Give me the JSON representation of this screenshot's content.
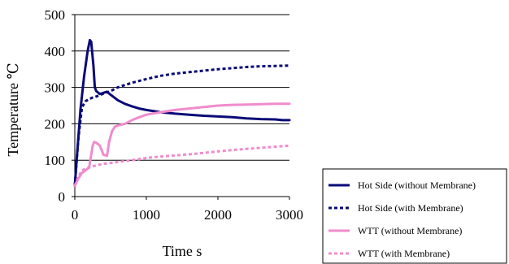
{
  "chart_data": {
    "type": "line",
    "title": "",
    "xlabel": "Time s",
    "ylabel": "Temperature ℃",
    "xlim": [
      0,
      3000
    ],
    "ylim": [
      0,
      500
    ],
    "xticks": [
      "0",
      "1000",
      "2000",
      "3000"
    ],
    "yticks": [
      "0",
      "100",
      "200",
      "300",
      "400",
      "500"
    ],
    "grid": "horizontal",
    "legend_position": "bottom-right",
    "series": [
      {
        "name": "Hot Side (without Membrane)",
        "color": "#0a0a78",
        "style": "solid",
        "x": [
          0,
          30,
          80,
          130,
          180,
          210,
          230,
          260,
          280,
          300,
          350,
          400,
          450,
          500,
          600,
          700,
          800,
          900,
          1000,
          1200,
          1400,
          1600,
          1800,
          2000,
          2200,
          2400,
          2600,
          2800,
          2900,
          3000
        ],
        "y": [
          30,
          110,
          240,
          330,
          400,
          430,
          425,
          360,
          300,
          290,
          282,
          285,
          288,
          280,
          265,
          255,
          248,
          242,
          238,
          232,
          228,
          225,
          222,
          220,
          218,
          215,
          213,
          212,
          210,
          210
        ]
      },
      {
        "name": "Hot Side (with Membrane)",
        "color": "#0a0a78",
        "style": "dotted",
        "x": [
          0,
          50,
          100,
          150,
          200,
          250,
          300,
          400,
          500,
          600,
          800,
          1000,
          1200,
          1400,
          1600,
          1800,
          2000,
          2200,
          2400,
          2600,
          2800,
          3000
        ],
        "y": [
          30,
          160,
          245,
          262,
          268,
          272,
          275,
          283,
          290,
          300,
          313,
          323,
          332,
          338,
          342,
          346,
          350,
          353,
          356,
          358,
          359,
          360
        ]
      },
      {
        "name": "WTT (without Membrane)",
        "color": "#f08ccc",
        "style": "solid",
        "x": [
          0,
          50,
          100,
          150,
          200,
          250,
          270,
          300,
          350,
          400,
          450,
          480,
          520,
          560,
          600,
          700,
          800,
          900,
          1000,
          1200,
          1400,
          1600,
          1800,
          2000,
          2200,
          2400,
          2600,
          2800,
          3000
        ],
        "y": [
          30,
          50,
          65,
          72,
          80,
          140,
          150,
          148,
          140,
          115,
          112,
          150,
          180,
          192,
          195,
          200,
          210,
          218,
          225,
          232,
          238,
          242,
          246,
          250,
          252,
          253,
          254,
          255,
          255
        ]
      },
      {
        "name": "WTT (with Membrane)",
        "color": "#f08ccc",
        "style": "dotted",
        "x": [
          0,
          50,
          100,
          200,
          300,
          400,
          600,
          800,
          1000,
          1200,
          1400,
          1600,
          1800,
          2000,
          2200,
          2400,
          2600,
          2800,
          3000
        ],
        "y": [
          30,
          55,
          72,
          80,
          86,
          90,
          95,
          100,
          106,
          110,
          113,
          116,
          120,
          124,
          128,
          131,
          134,
          137,
          140
        ]
      }
    ]
  }
}
